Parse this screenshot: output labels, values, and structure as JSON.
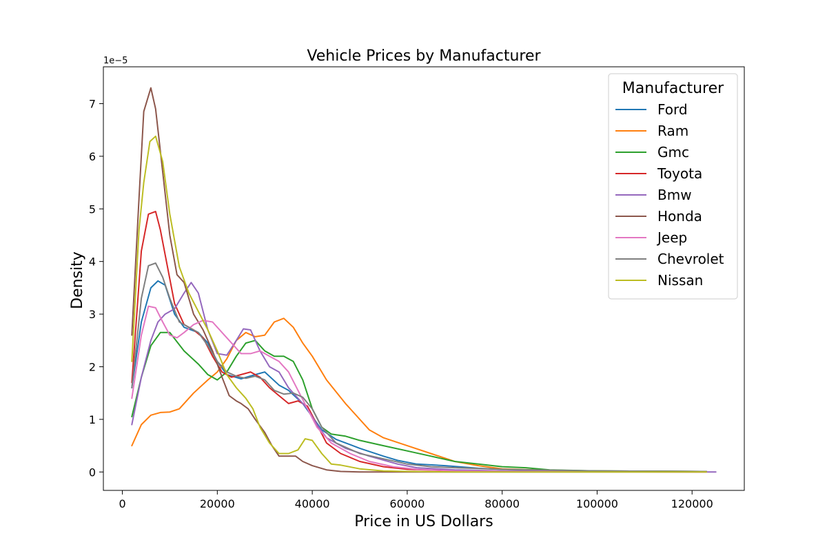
{
  "chart_data": {
    "type": "line",
    "title": "Vehicle Prices by Manufacturer",
    "xlabel": "Price in US Dollars",
    "ylabel": "Density",
    "y_offset_label": "1e−5",
    "xlim": [
      -4000,
      131000
    ],
    "ylim": [
      -0.35,
      7.7
    ],
    "x_ticks": [
      0,
      20000,
      40000,
      60000,
      80000,
      100000,
      120000
    ],
    "y_ticks": [
      0,
      1,
      2,
      3,
      4,
      5,
      6,
      7
    ],
    "grid": false,
    "legend": {
      "title": "Manufacturer",
      "placement": "top-right"
    },
    "series": [
      {
        "name": "Ford",
        "color": "#1f77b4",
        "x": [
          2000,
          4000,
          6000,
          7500,
          9000,
          11000,
          13000,
          16000,
          18000,
          20000,
          22000,
          25000,
          28000,
          30000,
          33000,
          35000,
          38000,
          40000,
          42000,
          45000,
          50000,
          55000,
          58000,
          62000,
          68000,
          75000,
          80000,
          90000,
          100000,
          123000
        ],
        "y": [
          1.6,
          2.85,
          3.5,
          3.63,
          3.55,
          3.0,
          2.75,
          2.65,
          2.45,
          2.1,
          1.85,
          1.77,
          1.85,
          1.9,
          1.65,
          1.55,
          1.3,
          1.05,
          0.8,
          0.62,
          0.45,
          0.3,
          0.22,
          0.15,
          0.12,
          0.07,
          0.05,
          0.03,
          0.02,
          0.01
        ]
      },
      {
        "name": "Ram",
        "color": "#ff7f0e",
        "x": [
          2000,
          4000,
          6000,
          8000,
          10000,
          12000,
          15000,
          18000,
          20000,
          22000,
          24000,
          26000,
          28000,
          30000,
          32000,
          34000,
          36000,
          38000,
          40000,
          43000,
          47000,
          52000,
          55000,
          60000,
          65000,
          70000,
          75000,
          80000,
          90000,
          100000,
          123000
        ],
        "y": [
          0.5,
          0.9,
          1.08,
          1.13,
          1.14,
          1.2,
          1.5,
          1.75,
          1.9,
          2.15,
          2.5,
          2.65,
          2.57,
          2.6,
          2.85,
          2.92,
          2.75,
          2.45,
          2.2,
          1.75,
          1.3,
          0.8,
          0.65,
          0.5,
          0.35,
          0.2,
          0.12,
          0.06,
          0.03,
          0.02,
          0.01
        ]
      },
      {
        "name": "Gmc",
        "color": "#2ca02c",
        "x": [
          2000,
          4000,
          6000,
          8000,
          10000,
          13000,
          16000,
          18000,
          20000,
          22000,
          24000,
          26000,
          28000,
          30000,
          32000,
          34000,
          36000,
          38000,
          40000,
          42000,
          44000,
          47000,
          50000,
          55000,
          60000,
          65000,
          70000,
          75000,
          80000,
          85000,
          90000,
          95000,
          100000,
          123000
        ],
        "y": [
          1.05,
          1.8,
          2.4,
          2.65,
          2.65,
          2.3,
          2.05,
          1.85,
          1.75,
          1.9,
          2.2,
          2.45,
          2.5,
          2.3,
          2.2,
          2.2,
          2.1,
          1.75,
          1.2,
          0.85,
          0.72,
          0.68,
          0.6,
          0.5,
          0.4,
          0.3,
          0.2,
          0.15,
          0.1,
          0.08,
          0.04,
          0.03,
          0.02,
          0.01
        ]
      },
      {
        "name": "Toyota",
        "color": "#d62728",
        "x": [
          2000,
          4000,
          5500,
          7000,
          8000,
          9500,
          11000,
          13000,
          15000,
          17000,
          19000,
          21000,
          23000,
          25000,
          27000,
          29000,
          31000,
          33000,
          35000,
          37000,
          39000,
          41000,
          43000,
          46000,
          50000,
          55000,
          60000,
          70000,
          80000,
          123000
        ],
        "y": [
          1.7,
          4.2,
          4.9,
          4.95,
          4.6,
          3.9,
          3.2,
          2.8,
          2.7,
          2.55,
          2.2,
          1.9,
          1.8,
          1.85,
          1.9,
          1.8,
          1.6,
          1.45,
          1.3,
          1.35,
          1.25,
          0.9,
          0.55,
          0.35,
          0.2,
          0.1,
          0.05,
          0.02,
          0.01,
          0.0
        ]
      },
      {
        "name": "Bmw",
        "color": "#9467bd",
        "x": [
          2000,
          4000,
          6000,
          7500,
          9000,
          11000,
          13000,
          14500,
          16000,
          18000,
          20000,
          22000,
          24000,
          25500,
          27000,
          29000,
          31000,
          33000,
          35000,
          37000,
          39000,
          41000,
          43000,
          47000,
          52000,
          58000,
          62000,
          70000,
          80000,
          100000,
          125000
        ],
        "y": [
          0.9,
          1.8,
          2.5,
          2.85,
          3.0,
          3.1,
          3.4,
          3.6,
          3.4,
          2.7,
          2.25,
          2.22,
          2.5,
          2.72,
          2.7,
          2.3,
          2.0,
          1.9,
          1.6,
          1.4,
          1.2,
          0.9,
          0.65,
          0.45,
          0.3,
          0.15,
          0.08,
          0.04,
          0.02,
          0.01,
          0.0
        ]
      },
      {
        "name": "Honda",
        "color": "#8c564b",
        "x": [
          2000,
          3500,
          4500,
          6000,
          7000,
          8500,
          10000,
          11500,
          13000,
          15000,
          17000,
          19000,
          21000,
          22500,
          24000,
          25000,
          26500,
          28000,
          30000,
          31500,
          33000,
          35000,
          36500,
          38000,
          40000,
          43000,
          46000,
          50000,
          55000,
          60000,
          123000
        ],
        "y": [
          2.6,
          5.2,
          6.85,
          7.3,
          6.9,
          5.7,
          4.5,
          3.75,
          3.6,
          3.0,
          2.7,
          2.3,
          1.8,
          1.45,
          1.35,
          1.3,
          1.2,
          1.0,
          0.75,
          0.5,
          0.3,
          0.3,
          0.3,
          0.2,
          0.12,
          0.04,
          0.01,
          0.0,
          0.0,
          0.0,
          0.0
        ]
      },
      {
        "name": "Jeep",
        "color": "#e377c2",
        "x": [
          2000,
          4000,
          5500,
          7000,
          8500,
          10000,
          11500,
          13000,
          15000,
          17000,
          19000,
          21000,
          23000,
          25000,
          27000,
          29000,
          31000,
          33000,
          35000,
          37000,
          39000,
          41000,
          44000,
          48000,
          52000,
          57000,
          62000,
          70000,
          80000,
          123000
        ],
        "y": [
          1.4,
          2.6,
          3.15,
          3.12,
          2.85,
          2.6,
          2.55,
          2.65,
          2.8,
          2.88,
          2.85,
          2.65,
          2.45,
          2.25,
          2.25,
          2.3,
          2.2,
          2.1,
          1.9,
          1.55,
          1.2,
          0.85,
          0.55,
          0.35,
          0.2,
          0.1,
          0.05,
          0.02,
          0.01,
          0.0
        ]
      },
      {
        "name": "Chevrolet",
        "color": "#7f7f7f",
        "x": [
          2000,
          4000,
          5500,
          7000,
          8500,
          10000,
          12000,
          14000,
          16000,
          18000,
          20000,
          22000,
          24000,
          26000,
          28000,
          30000,
          32000,
          34000,
          36000,
          38000,
          40000,
          42000,
          45000,
          50000,
          55000,
          60000,
          65000,
          70000,
          80000,
          100000,
          123000
        ],
        "y": [
          1.6,
          3.3,
          3.92,
          3.97,
          3.7,
          3.3,
          2.85,
          2.75,
          2.65,
          2.4,
          2.1,
          1.9,
          1.82,
          1.78,
          1.82,
          1.75,
          1.55,
          1.48,
          1.5,
          1.42,
          1.2,
          0.85,
          0.55,
          0.35,
          0.25,
          0.15,
          0.1,
          0.08,
          0.05,
          0.02,
          0.01
        ]
      },
      {
        "name": "Nissan",
        "color": "#bcbd22",
        "x": [
          2000,
          3500,
          4500,
          5800,
          7000,
          8500,
          10000,
          12000,
          14000,
          16000,
          18000,
          20000,
          22000,
          24000,
          26000,
          27500,
          29000,
          31000,
          33000,
          35000,
          37000,
          38500,
          40000,
          42000,
          44000,
          46000,
          50000,
          55000,
          60000,
          70000,
          80000,
          123000
        ],
        "y": [
          2.1,
          4.6,
          5.5,
          6.28,
          6.38,
          5.9,
          4.9,
          3.9,
          3.4,
          3.05,
          2.7,
          2.3,
          1.85,
          1.6,
          1.4,
          1.2,
          0.85,
          0.55,
          0.35,
          0.35,
          0.42,
          0.63,
          0.6,
          0.35,
          0.15,
          0.13,
          0.06,
          0.02,
          0.01,
          0.0,
          0.0,
          0.0
        ]
      }
    ]
  }
}
